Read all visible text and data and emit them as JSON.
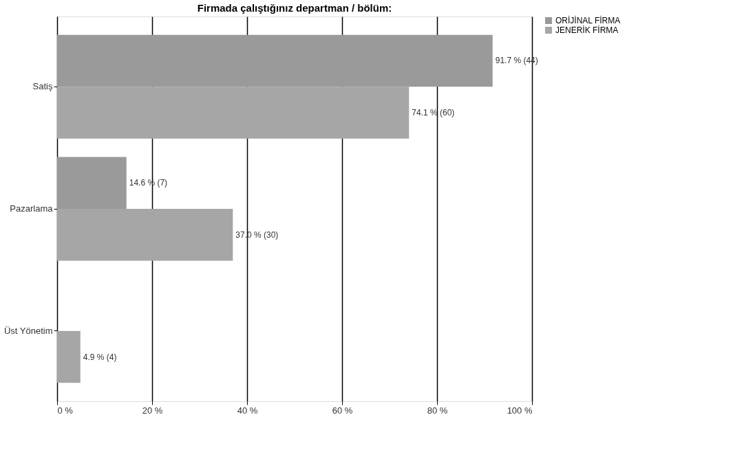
{
  "chart_data": {
    "type": "bar",
    "orientation": "horizontal",
    "title": "Firmada çalıştığınız departman / bölüm:",
    "categories": [
      "Satiş",
      "Pazarlama",
      "Üst Yönetim"
    ],
    "series": [
      {
        "name": "ORİJİNAL FİRMA",
        "color": "#9a9a9a",
        "values": [
          91.7,
          14.6,
          null
        ],
        "value_labels": [
          "91.7 % (44)",
          "14.6 % (7)",
          null
        ]
      },
      {
        "name": "JENERİK FİRMA",
        "color": "#a6a6a6",
        "values": [
          74.1,
          37.0,
          4.9
        ],
        "value_labels": [
          "74.1 % (60)",
          "37.0 % (30)",
          "4.9 % (4)"
        ]
      }
    ],
    "xlim": [
      0,
      100
    ],
    "xticks": [
      {
        "value": 0,
        "label": "0 %"
      },
      {
        "value": 20,
        "label": "20 %"
      },
      {
        "value": 40,
        "label": "40 %"
      },
      {
        "value": 60,
        "label": "60 %"
      },
      {
        "value": 80,
        "label": "80 %"
      },
      {
        "value": 100,
        "label": "100 %"
      }
    ],
    "grid": "x",
    "legend": "right"
  }
}
